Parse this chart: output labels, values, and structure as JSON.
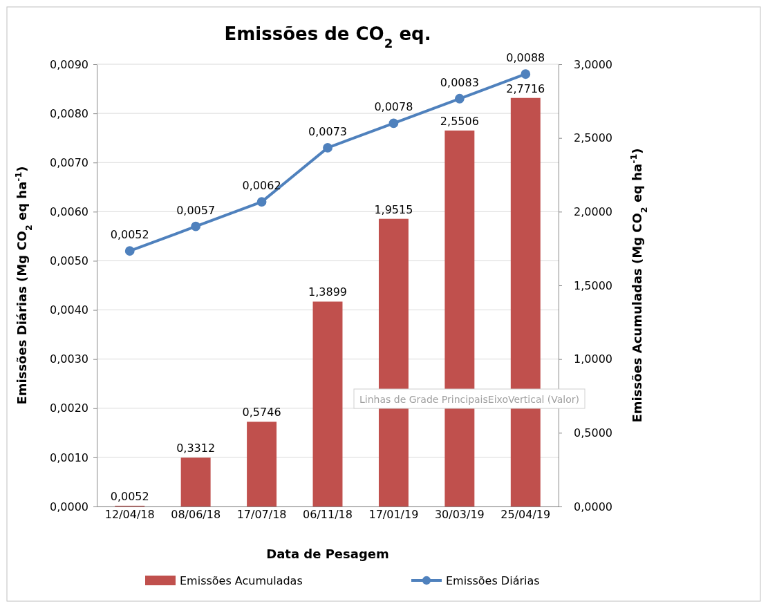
{
  "chart_data": {
    "type": "bar",
    "title": "Emissões de CO$_{2}$ eq.",
    "xlabel": "Data de Pesagem",
    "ylabel": "Emissões Diárias (Mg CO$_{2}$ eq ha$^{-1}$)",
    "y2label": "Emissões Acumuladas (Mg CO$_{2}$ eq ha$^{-1}$)",
    "categories": [
      "12/04/18",
      "08/06/18",
      "17/07/18",
      "06/11/18",
      "17/01/19",
      "30/03/19",
      "25/04/19"
    ],
    "series": [
      {
        "name": "Emissões Acumuladas",
        "axis": "y2",
        "color": "#c0504d",
        "values": [
          0.0052,
          0.3312,
          0.5746,
          1.3899,
          1.9515,
          2.5506,
          2.7716
        ],
        "value_labels": [
          "0,0052",
          "0,3312",
          "0,5746",
          "1,3899",
          "1,9515",
          "2,5506",
          "2,7716"
        ]
      },
      {
        "name": "Emissões Diárias",
        "type": "line",
        "axis": "y",
        "color": "#4f81bd",
        "marker": "circle",
        "values": [
          0.0052,
          0.0057,
          0.0062,
          0.0073,
          0.0078,
          0.0083,
          0.0088
        ],
        "value_labels": [
          "0,0052",
          "0,0057",
          "0,0062",
          "0,0073",
          "0,0078",
          "0,0083",
          "0,0088"
        ]
      }
    ],
    "ylim": [
      0,
      0.009
    ],
    "yticks": [
      {
        "value": 0,
        "label": "0,0000"
      },
      {
        "value": 0.001,
        "label": "0,0010"
      },
      {
        "value": 0.002,
        "label": "0,0020"
      },
      {
        "value": 0.003,
        "label": "0,0030"
      },
      {
        "value": 0.004,
        "label": "0,0040"
      },
      {
        "value": 0.005,
        "label": "0,0050"
      },
      {
        "value": 0.006,
        "label": "0,0060"
      },
      {
        "value": 0.007,
        "label": "0,0070"
      },
      {
        "value": 0.008,
        "label": "0,0080"
      },
      {
        "value": 0.009,
        "label": "0,0090"
      }
    ],
    "y2lim": [
      0,
      3
    ],
    "y2ticks": [
      {
        "value": 0,
        "label": "0,0000"
      },
      {
        "value": 0.5,
        "label": "0,5000"
      },
      {
        "value": 1,
        "label": "1,0000"
      },
      {
        "value": 1.5,
        "label": "1,5000"
      },
      {
        "value": 2,
        "label": "2,0000"
      },
      {
        "value": 2.5,
        "label": "2,5000"
      },
      {
        "value": 3,
        "label": "3,0000"
      }
    ],
    "grid": "y",
    "legend": "bottom",
    "annotations": [
      "Linhas de Grade PrincipaisEixoVertical (Valor)"
    ]
  }
}
